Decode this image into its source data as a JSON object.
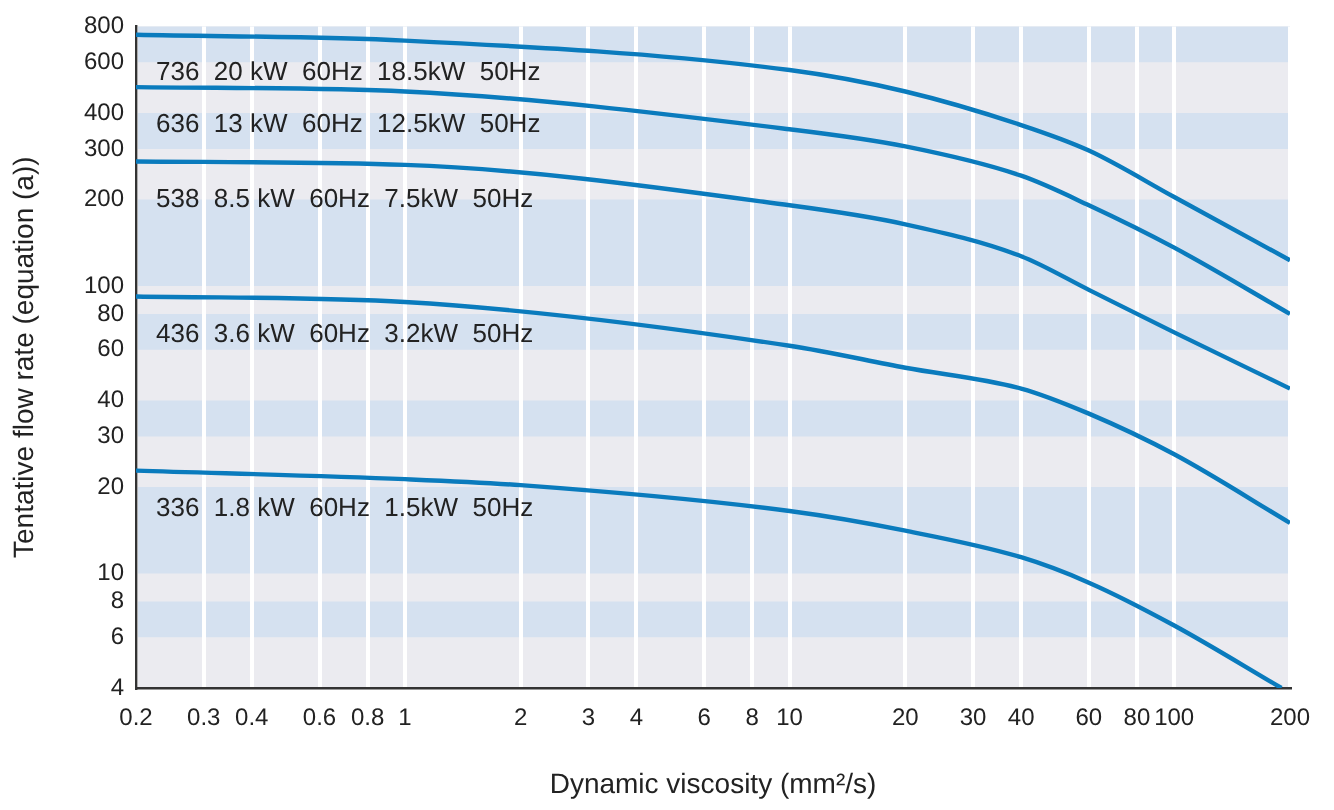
{
  "chart_data": {
    "type": "line",
    "xlabel": "Dynamic viscosity (mm²/s)",
    "ylabel": "Tentative flow rate (equation (a))",
    "log": "xy",
    "grid": "x",
    "legend": false,
    "marker": "none",
    "line_style": "solid",
    "xlim": [
      0.2,
      200
    ],
    "xticks": [
      0.2,
      0.3,
      0.4,
      0.6,
      0.8,
      1,
      2,
      3,
      4,
      6,
      8,
      10,
      20,
      30,
      40,
      60,
      80,
      100,
      200
    ],
    "ylim": [
      4,
      800
    ],
    "yticks": [
      4,
      6,
      8,
      10,
      20,
      30,
      40,
      60,
      80,
      100,
      200,
      300,
      400,
      600,
      800
    ],
    "bands": [
      {
        "axis": "y",
        "from": 600,
        "to": 800,
        "color": "#d5e1f0"
      },
      {
        "axis": "y",
        "from": 300,
        "to": 400,
        "color": "#d5e1f0"
      },
      {
        "axis": "y",
        "from": 100,
        "to": 200,
        "color": "#d5e1f0"
      },
      {
        "axis": "y",
        "from": 60,
        "to": 80,
        "color": "#d5e1f0"
      },
      {
        "axis": "y",
        "from": 30,
        "to": 40,
        "color": "#d5e1f0"
      },
      {
        "axis": "y",
        "from": 10,
        "to": 20,
        "color": "#d5e1f0"
      },
      {
        "axis": "y",
        "from": 6,
        "to": 8,
        "color": "#d5e1f0"
      }
    ],
    "series": [
      {
        "name": "736  20 kW  60Hz  18.5kW  50Hz",
        "color": "#0a7bbd",
        "x": [
          0.2,
          1,
          10,
          20,
          40,
          60,
          100,
          200
        ],
        "values": [
          748,
          714,
          564,
          475,
          363,
          296,
          204,
          123
        ]
      },
      {
        "name": "636  13 kW  60Hz  12.5kW  50Hz",
        "color": "#0a7bbd",
        "x": [
          0.2,
          1,
          10,
          20,
          40,
          60,
          100,
          200
        ],
        "values": [
          492,
          475,
          351,
          306,
          242,
          191,
          136,
          80
        ]
      },
      {
        "name": "538  8.5 kW  60Hz  7.5kW  50Hz",
        "color": "#0a7bbd",
        "x": [
          0.2,
          1,
          10,
          20,
          40,
          60,
          100,
          200
        ],
        "values": [
          271,
          264,
          191,
          164,
          127,
          97,
          69,
          44
        ]
      },
      {
        "name": "436  3.6 kW  60Hz  3.2kW  50Hz",
        "color": "#0a7bbd",
        "x": [
          0.2,
          1,
          10,
          20,
          40,
          60,
          100,
          200
        ],
        "values": [
          92,
          88,
          62,
          52,
          44,
          36,
          26,
          15
        ]
      },
      {
        "name": "336  1.8 kW  60Hz  1.5kW  50Hz",
        "color": "#0a7bbd",
        "x": [
          0.2,
          1,
          2,
          10,
          20,
          40,
          60,
          100,
          190
        ],
        "values": [
          22.8,
          21.3,
          20.3,
          16.5,
          14.1,
          11.4,
          9.3,
          6.6,
          4
        ]
      }
    ]
  }
}
